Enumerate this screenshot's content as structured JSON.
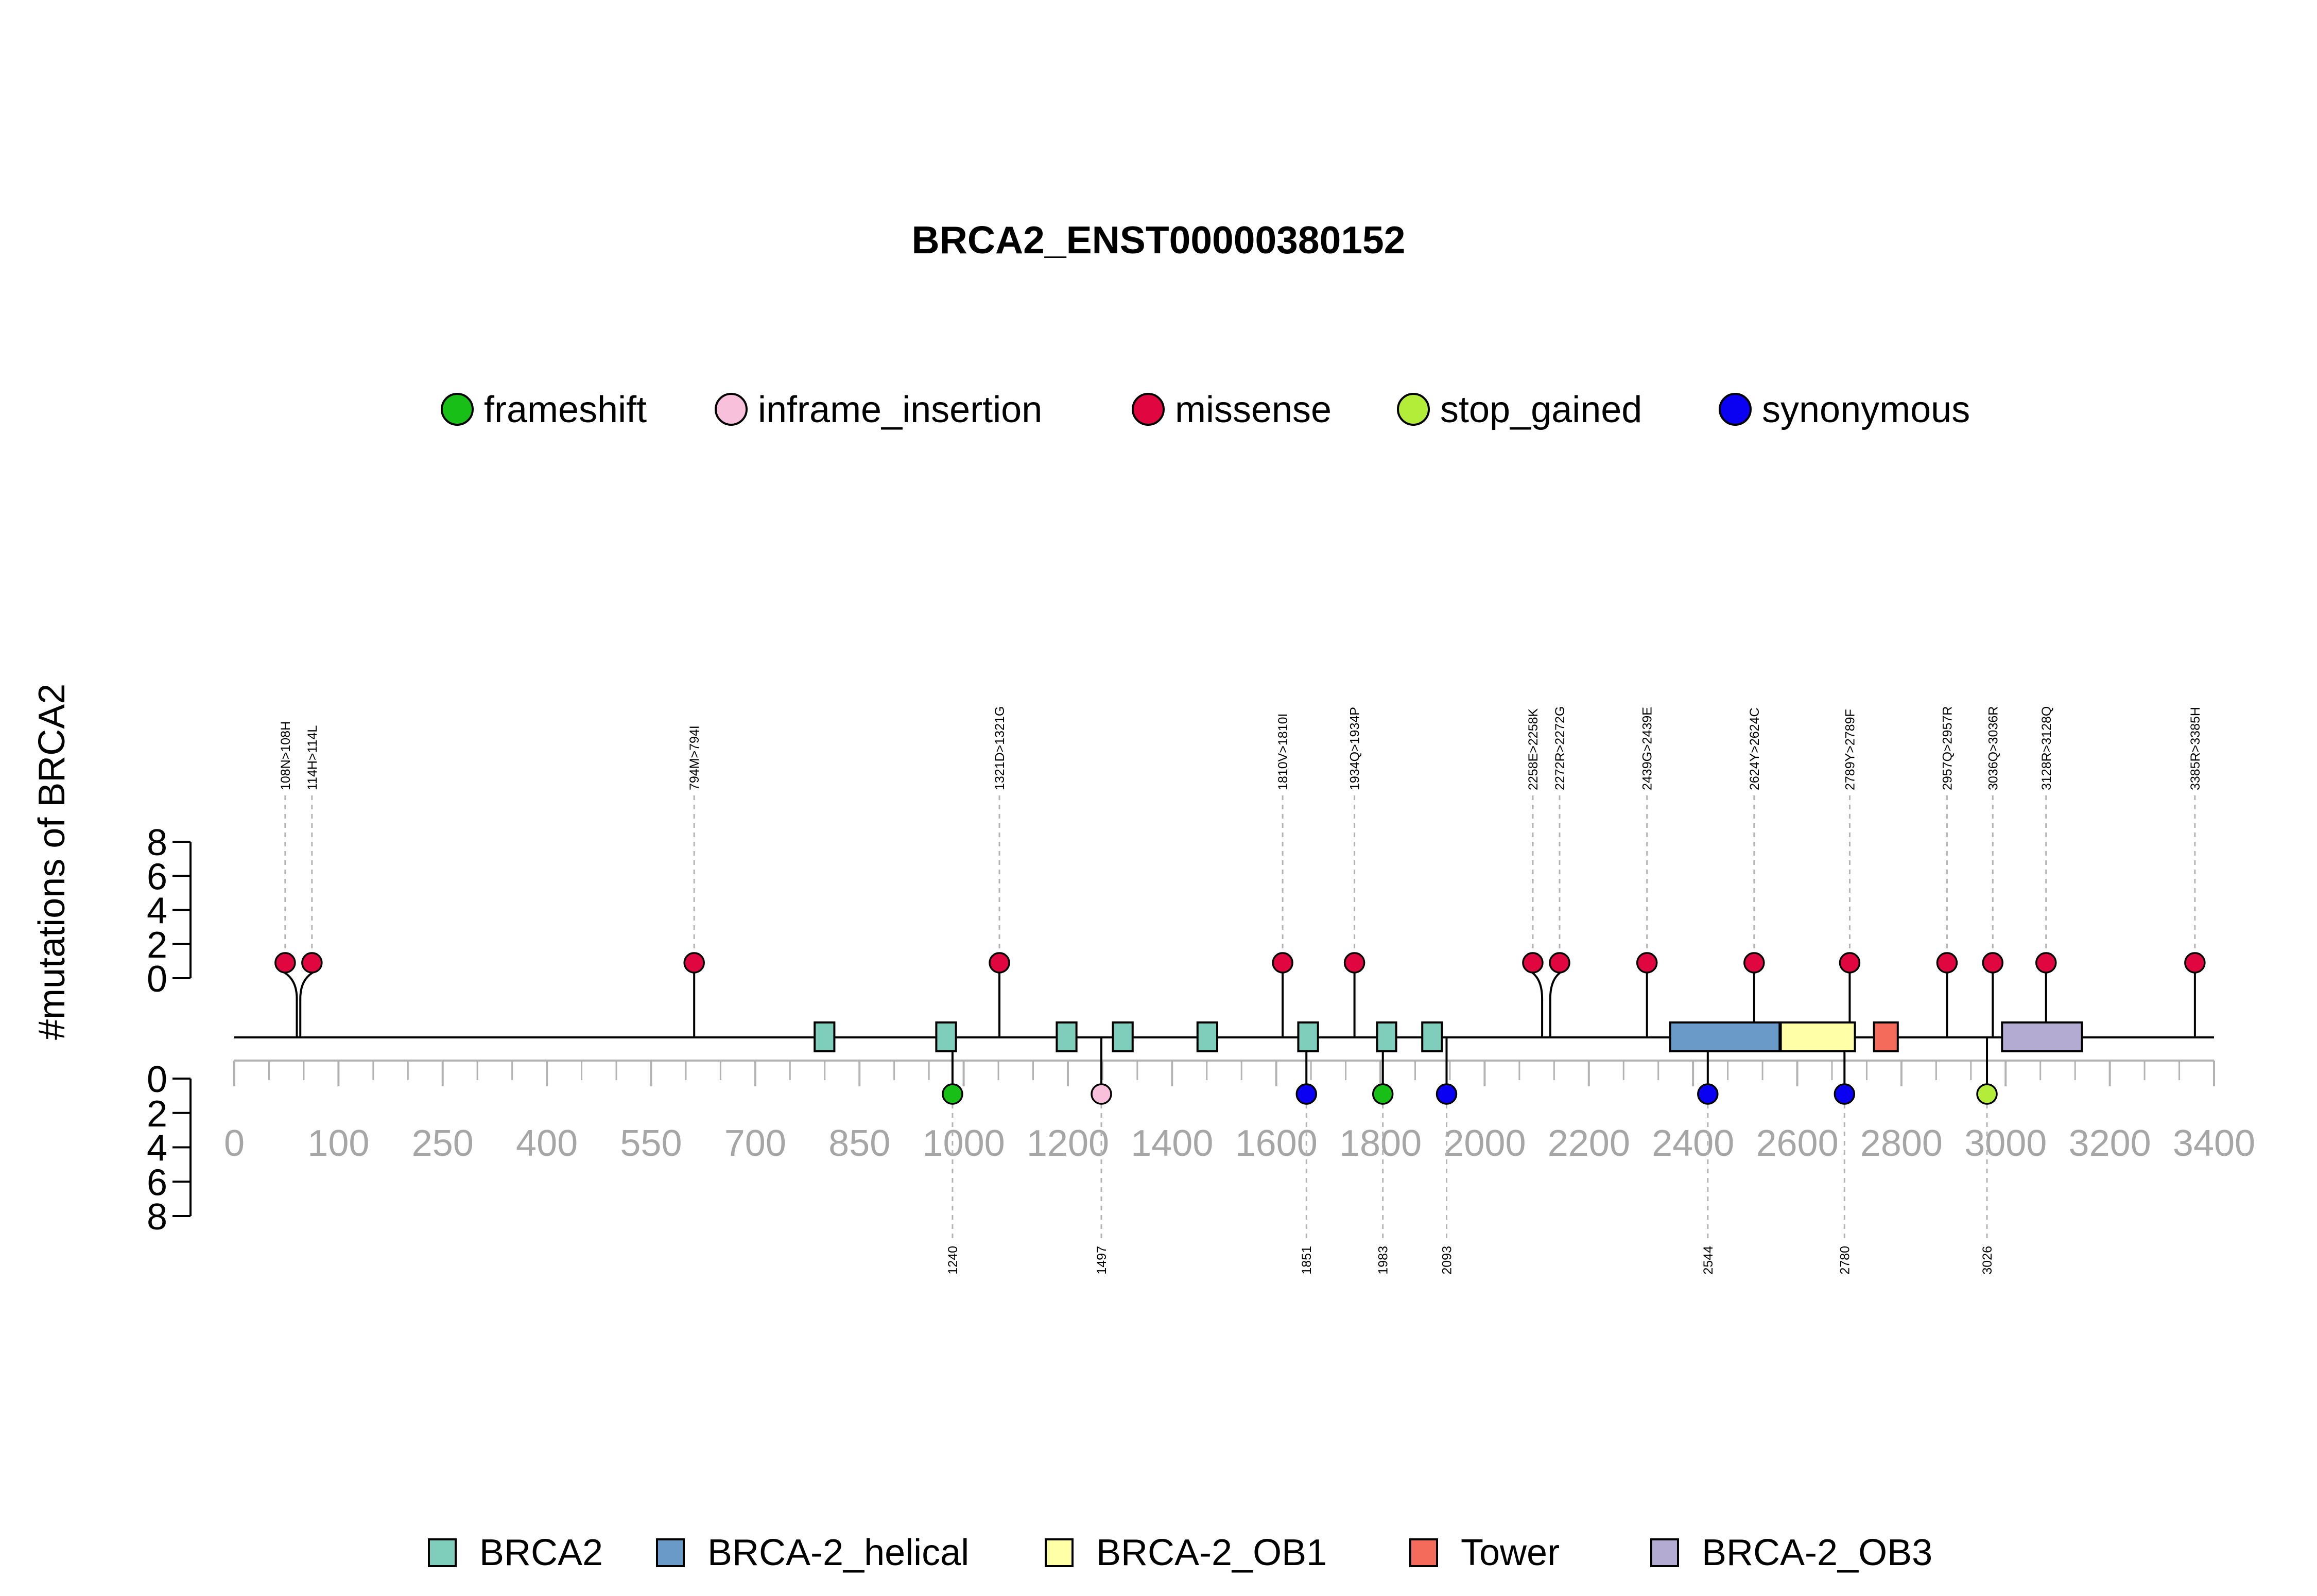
{
  "chart_data": {
    "type": "lollipop",
    "title": "BRCA2_ENST00000380152",
    "ylabel": "#mutations of BRCA2",
    "y_ticks": [
      "0",
      "2",
      "4",
      "6",
      "8"
    ],
    "ylim": [
      0,
      8
    ],
    "x_ticks": [
      "0",
      "100",
      "250",
      "400",
      "550",
      "700",
      "850",
      "1000",
      "1200",
      "1400",
      "1600",
      "1800",
      "2000",
      "2200",
      "2400",
      "2600",
      "2800",
      "3000",
      "3200",
      "3400"
    ],
    "mutation_legend": [
      {
        "name": "frameshift",
        "color": "#17BF17"
      },
      {
        "name": "inframe_insertion",
        "color": "#F9C0DC"
      },
      {
        "name": "missense",
        "color": "#E0063F"
      },
      {
        "name": "stop_gained",
        "color": "#B4EC3A"
      },
      {
        "name": "synonymous",
        "color": "#0A00F2"
      }
    ],
    "domain_legend": [
      {
        "name": "BRCA2",
        "color": "#7FCDBB"
      },
      {
        "name": "BRCA-2_helical",
        "color": "#6A9BC8"
      },
      {
        "name": "BRCA-2_OB1",
        "color": "#FFFFA8"
      },
      {
        "name": "Tower",
        "color": "#F56B5B"
      },
      {
        "name": "BRCA-2_OB3",
        "color": "#B3ABD1"
      }
    ],
    "top_mutations": [
      {
        "label": "108N>108H",
        "position": 108,
        "count": 1,
        "type": "missense"
      },
      {
        "label": "114H>114L",
        "position": 114,
        "count": 1,
        "type": "missense"
      },
      {
        "label": "794M>794I",
        "position": 794,
        "count": 1,
        "type": "missense"
      },
      {
        "label": "1321D>1321G",
        "position": 1321,
        "count": 1,
        "type": "missense"
      },
      {
        "label": "1810V>1810I",
        "position": 1810,
        "count": 1,
        "type": "missense"
      },
      {
        "label": "1934Q>1934P",
        "position": 1934,
        "count": 1,
        "type": "missense"
      },
      {
        "label": "2258E>2258K",
        "position": 2258,
        "count": 1,
        "type": "missense"
      },
      {
        "label": "2272R>2272G",
        "position": 2272,
        "count": 1,
        "type": "missense"
      },
      {
        "label": "2439G>2439E",
        "position": 2439,
        "count": 1,
        "type": "missense"
      },
      {
        "label": "2624Y>2624C",
        "position": 2624,
        "count": 1,
        "type": "missense"
      },
      {
        "label": "2789Y>2789F",
        "position": 2789,
        "count": 1,
        "type": "missense"
      },
      {
        "label": "2957Q>2957R",
        "position": 2957,
        "count": 1,
        "type": "missense"
      },
      {
        "label": "3036Q>3036R",
        "position": 3036,
        "count": 1,
        "type": "missense"
      },
      {
        "label": "3128R>3128Q",
        "position": 3128,
        "count": 1,
        "type": "missense"
      },
      {
        "label": "3385R>3385H",
        "position": 3385,
        "count": 1,
        "type": "missense"
      }
    ],
    "bottom_mutations": [
      {
        "label": "1240",
        "position": 1240,
        "count": 1,
        "type": "frameshift"
      },
      {
        "label": "1497",
        "position": 1497,
        "count": 1,
        "type": "inframe_insertion"
      },
      {
        "label": "1851",
        "position": 1851,
        "count": 1,
        "type": "synonymous"
      },
      {
        "label": "1983",
        "position": 1983,
        "count": 1,
        "type": "frameshift"
      },
      {
        "label": "2093",
        "position": 2093,
        "count": 1,
        "type": "synonymous"
      },
      {
        "label": "2544",
        "position": 2544,
        "count": 1,
        "type": "synonymous"
      },
      {
        "label": "2780",
        "position": 2780,
        "count": 1,
        "type": "synonymous"
      },
      {
        "label": "3026",
        "position": 3026,
        "count": 1,
        "type": "stop_gained"
      }
    ],
    "domains": [
      {
        "name": "BRCA2",
        "start": 1002,
        "end": 1036
      },
      {
        "name": "BRCA2",
        "start": 1212,
        "end": 1246
      },
      {
        "name": "BRCA2",
        "start": 1420,
        "end": 1454
      },
      {
        "name": "BRCA2",
        "start": 1517,
        "end": 1551
      },
      {
        "name": "BRCA2",
        "start": 1663,
        "end": 1697
      },
      {
        "name": "BRCA2",
        "start": 1837,
        "end": 1871
      },
      {
        "name": "BRCA2",
        "start": 1973,
        "end": 2006
      },
      {
        "name": "BRCA2",
        "start": 2051,
        "end": 2085
      },
      {
        "name": "BRCA-2_helical",
        "start": 2479,
        "end": 2668
      },
      {
        "name": "BRCA-2_OB1",
        "start": 2670,
        "end": 2798
      },
      {
        "name": "Tower",
        "start": 2831,
        "end": 2872
      },
      {
        "name": "BRCA-2_OB3",
        "start": 3052,
        "end": 3190
      }
    ]
  }
}
